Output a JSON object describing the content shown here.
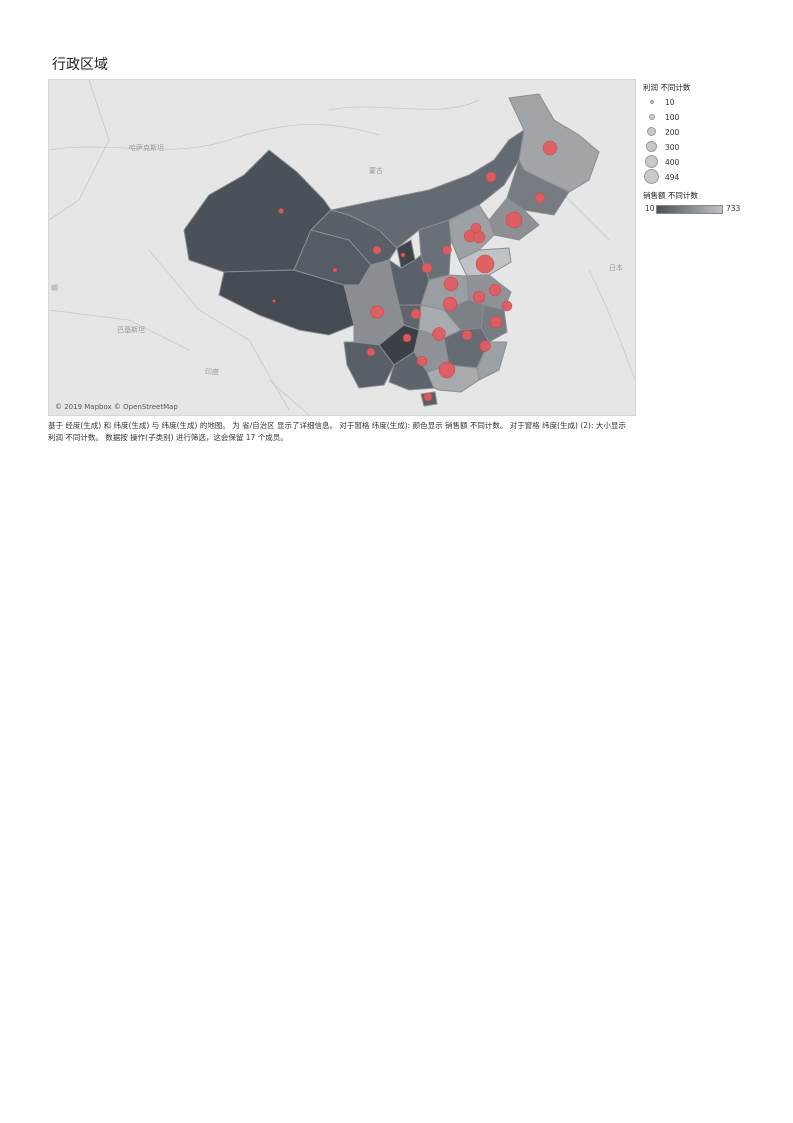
{
  "page_title": "行政区域",
  "map": {
    "attribution": "© 2019 Mapbox © OpenStreetMap",
    "base_labels": [
      "哈萨克斯坦",
      "蒙古",
      "巴基斯坦",
      "印度",
      "日本",
      "朝"
    ],
    "colors": {
      "province_dark": "#4b5159",
      "province_light": "#c0c3c5",
      "marker": "#e05c60",
      "background": "#e6e6e6"
    }
  },
  "legend_size": {
    "title": "利润 不同计数",
    "items": [
      {
        "label": "10",
        "value": 10
      },
      {
        "label": "100",
        "value": 100
      },
      {
        "label": "200",
        "value": 200
      },
      {
        "label": "300",
        "value": 300
      },
      {
        "label": "400",
        "value": 400
      },
      {
        "label": "494",
        "value": 494
      }
    ]
  },
  "legend_color": {
    "title": "销售额 不同计数",
    "min_label": "10",
    "max_label": "733"
  },
  "caption": "基于 经度(生成) 和 纬度(生成) 与 纬度(生成) 的地图。 为 省/自治区 显示了详细信息。 对于窗格 纬度(生成): 颜色显示 销售额 不同计数。 对于窗格 纬度(生成) (2): 大小显示 利润 不同计数。 数据按 操作(子类别) 进行筛选，这会保留 17 个成员。"
}
